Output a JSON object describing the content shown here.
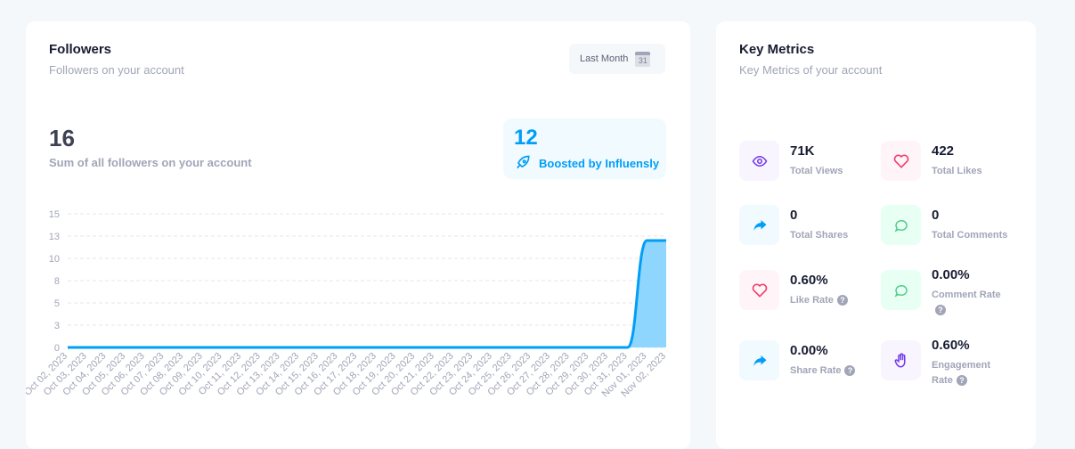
{
  "followers": {
    "title": "Followers",
    "subtitle": "Followers on your account",
    "range_button": "Last Month",
    "calendar_day": "31",
    "total": "16",
    "total_label": "Sum of all followers on your account",
    "boosted": "12",
    "boosted_label": "Boosted by Influensly"
  },
  "chart_data": {
    "type": "area",
    "ylim": [
      0,
      15
    ],
    "y_ticks": [
      "0",
      "3",
      "5",
      "8",
      "10",
      "13",
      "15"
    ],
    "y_tick_values": [
      0,
      2.5,
      5,
      7.5,
      10,
      12.5,
      15
    ],
    "grid": true,
    "color": "#009ef7",
    "categories": [
      "Oct 02, 2023",
      "Oct 03, 2023",
      "Oct 04, 2023",
      "Oct 05, 2023",
      "Oct 06, 2023",
      "Oct 07, 2023",
      "Oct 08, 2023",
      "Oct 09, 2023",
      "Oct 10, 2023",
      "Oct 11, 2023",
      "Oct 12, 2023",
      "Oct 13, 2023",
      "Oct 14, 2023",
      "Oct 15, 2023",
      "Oct 16, 2023",
      "Oct 17, 2023",
      "Oct 18, 2023",
      "Oct 19, 2023",
      "Oct 20, 2023",
      "Oct 21, 2023",
      "Oct 22, 2023",
      "Oct 23, 2023",
      "Oct 24, 2023",
      "Oct 25, 2023",
      "Oct 26, 2023",
      "Oct 27, 2023",
      "Oct 28, 2023",
      "Oct 29, 2023",
      "Oct 30, 2023",
      "Oct 31, 2023",
      "Nov 01, 2023",
      "Nov 02, 2023"
    ],
    "values": [
      0,
      0,
      0,
      0,
      0,
      0,
      0,
      0,
      0,
      0,
      0,
      0,
      0,
      0,
      0,
      0,
      0,
      0,
      0,
      0,
      0,
      0,
      0,
      0,
      0,
      0,
      0,
      0,
      0,
      0,
      12,
      12
    ]
  },
  "metrics": {
    "title": "Key Metrics",
    "subtitle": "Key Metrics of your account",
    "help": "?",
    "items": [
      {
        "value": "71K",
        "label": "Total Views",
        "icon": "eye-icon",
        "color": "#7239ea",
        "bg": "#f8f5ff"
      },
      {
        "value": "422",
        "label": "Total Likes",
        "icon": "heart-icon",
        "color": "#f1416c",
        "bg": "#fff5f8"
      },
      {
        "value": "0",
        "label": "Total Shares",
        "icon": "share-icon",
        "color": "#009ef7",
        "bg": "#f1faff"
      },
      {
        "value": "0",
        "label": "Total Comments",
        "icon": "comment-icon",
        "color": "#50cd89",
        "bg": "#e8fff3"
      },
      {
        "value": "0.60%",
        "label": "Like Rate",
        "icon": "heart-icon",
        "color": "#f1416c",
        "bg": "#fff5f8"
      },
      {
        "value": "0.00%",
        "label": "Comment Rate",
        "icon": "comment-icon",
        "color": "#50cd89",
        "bg": "#e8fff3"
      },
      {
        "value": "0.00%",
        "label": "Share Rate",
        "icon": "share-icon",
        "color": "#009ef7",
        "bg": "#f1faff"
      },
      {
        "value": "0.60%",
        "label": "Engagement Rate",
        "icon": "hand-icon",
        "color": "#7239ea",
        "bg": "#f8f5ff"
      }
    ]
  }
}
